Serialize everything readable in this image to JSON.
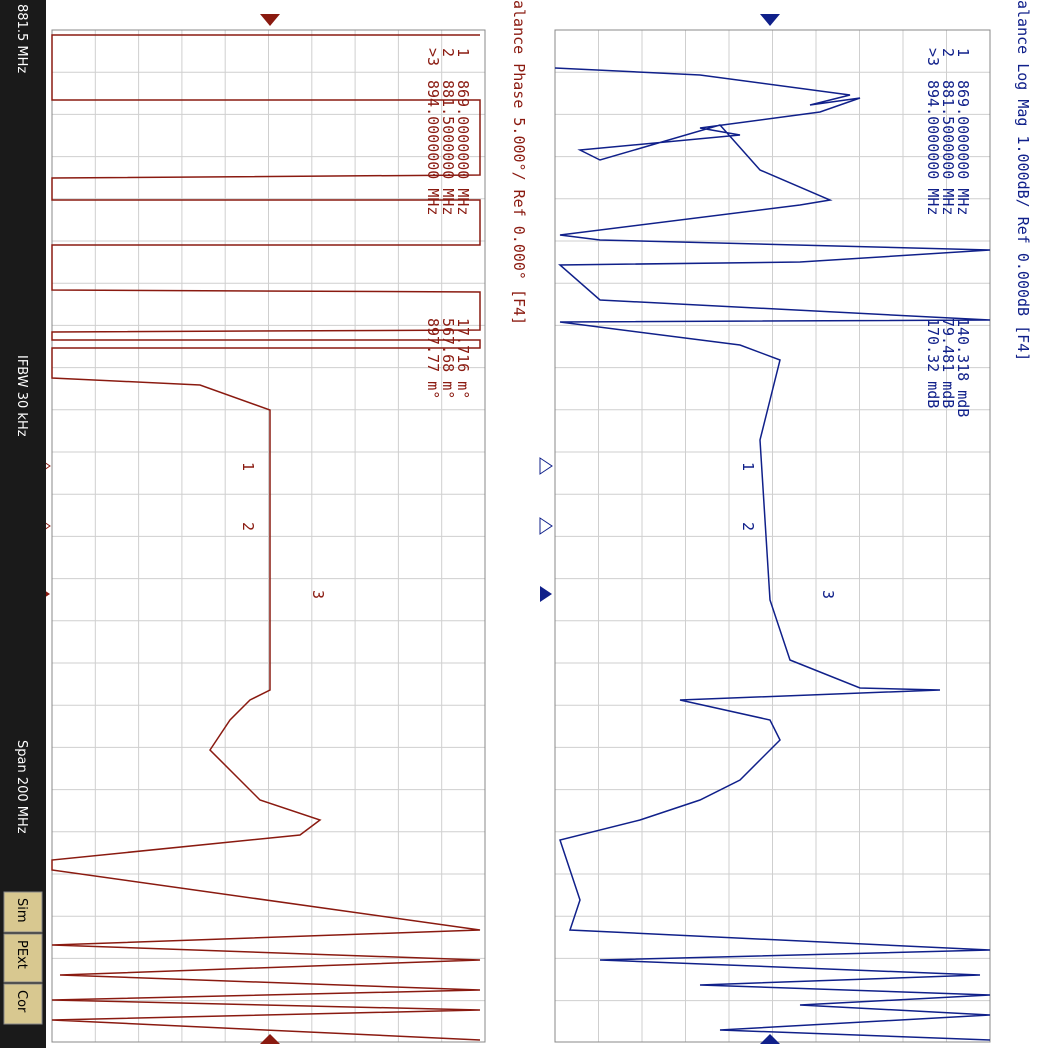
{
  "top_trace": {
    "title": "alance Log Mag 1.000dB/ Ref 0.000dB [F4]",
    "markers": [
      {
        "id": "1",
        "freq": "869.0000000 MHz",
        "value": "140.318 mdB"
      },
      {
        "id": "2",
        "freq": "881.5000000 MHz",
        "value": "79.481 mdB"
      },
      {
        "id": ">3",
        "freq": "894.0000000 MHz",
        "value": "170.32 mdB"
      }
    ],
    "trace_labels": [
      "1",
      "2",
      "3"
    ]
  },
  "bottom_trace": {
    "title": "alance Phase 5.000°/ Ref 0.000° [F4]",
    "markers": [
      {
        "id": "1",
        "freq": "869.0000000 MHz",
        "value": "17.716 m°"
      },
      {
        "id": "2",
        "freq": "881.5000000 MHz",
        "value": "567.68 m°"
      },
      {
        "id": ">3",
        "freq": "894.0000000 MHz",
        "value": "897.77 m°"
      }
    ],
    "trace_labels": [
      "1",
      "2",
      "3"
    ]
  },
  "status_bar": {
    "center": "881.5 MHz",
    "ifbw": "IFBW 30 kHz",
    "span": "Span 200 MHz",
    "buttons": [
      "Sim",
      "PExt",
      "Cor"
    ]
  }
}
